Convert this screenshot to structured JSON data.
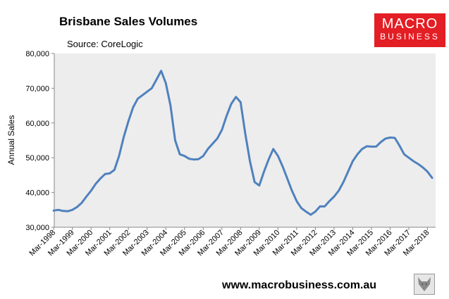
{
  "header": {
    "title": "Brisbane Sales Volumes",
    "source": "Source: CoreLogic"
  },
  "logo": {
    "line1": "MACRO",
    "line2": "BUSINESS",
    "bg_color": "#e31e24"
  },
  "footer": {
    "url": "www.macrobusiness.com.au",
    "mascot_icon": "wolf-icon"
  },
  "chart_data": {
    "type": "line",
    "title": "Brisbane Sales Volumes",
    "ylabel": "Annual Sales",
    "xlabel": "",
    "ylim": [
      30000,
      80000
    ],
    "yticks": [
      30000,
      40000,
      50000,
      60000,
      70000,
      80000
    ],
    "ytick_labels": [
      "30,000",
      "40,000",
      "50,000",
      "60,000",
      "70,000",
      "80,000"
    ],
    "xtick_labels": [
      "Mar-1998",
      "Mar-1999",
      "Mar-2000",
      "Mar-2001",
      "Mar-2002",
      "Mar-2003",
      "Mar-2004",
      "Mar-2005",
      "Mar-2006",
      "Mar-2007",
      "Mar-2008",
      "Mar-2009",
      "Mar-2010",
      "Mar-2011",
      "Mar-2012",
      "Mar-2013",
      "Mar-2014",
      "Mar-2015",
      "Mar-2016",
      "Mar-2017",
      "Mar-2018"
    ],
    "grid": false,
    "line_color": "#4f81bd",
    "plot_background": "#ededed",
    "series": [
      {
        "name": "",
        "x": [
          "1998-03",
          "1998-06",
          "1998-09",
          "1998-12",
          "1999-03",
          "1999-06",
          "1999-09",
          "1999-12",
          "2000-03",
          "2000-06",
          "2000-09",
          "2000-12",
          "2001-03",
          "2001-06",
          "2001-09",
          "2001-12",
          "2002-03",
          "2002-06",
          "2002-09",
          "2002-12",
          "2003-03",
          "2003-06",
          "2003-09",
          "2003-12",
          "2004-03",
          "2004-06",
          "2004-09",
          "2004-12",
          "2005-03",
          "2005-06",
          "2005-09",
          "2005-12",
          "2006-03",
          "2006-06",
          "2006-09",
          "2006-12",
          "2007-03",
          "2007-06",
          "2007-09",
          "2007-12",
          "2008-03",
          "2008-06",
          "2008-09",
          "2008-12",
          "2009-03",
          "2009-06",
          "2009-09",
          "2009-12",
          "2010-03",
          "2010-06",
          "2010-09",
          "2010-12",
          "2011-03",
          "2011-06",
          "2011-09",
          "2011-12",
          "2012-03",
          "2012-06",
          "2012-09",
          "2012-12",
          "2013-03",
          "2013-06",
          "2013-09",
          "2013-12",
          "2014-03",
          "2014-06",
          "2014-09",
          "2014-12",
          "2015-03",
          "2015-06",
          "2015-09",
          "2015-12",
          "2016-03",
          "2016-06",
          "2016-09",
          "2016-12",
          "2017-03",
          "2017-06",
          "2017-09",
          "2017-12",
          "2018-03",
          "2018-06"
        ],
        "values": [
          34800,
          35000,
          34700,
          34600,
          35000,
          35800,
          37000,
          38800,
          40500,
          42500,
          44000,
          45300,
          45500,
          46500,
          50500,
          56000,
          60500,
          64500,
          67000,
          68000,
          69000,
          70000,
          72500,
          75000,
          71500,
          65000,
          55000,
          51000,
          50500,
          49700,
          49500,
          49600,
          50500,
          52500,
          54000,
          55500,
          58000,
          62000,
          65500,
          67500,
          66000,
          57000,
          49000,
          43000,
          42000,
          46000,
          49500,
          52500,
          50500,
          47500,
          44000,
          40500,
          37500,
          35500,
          34500,
          33600,
          34500,
          36000,
          36000,
          37500,
          38800,
          40500,
          43000,
          46000,
          49000,
          51000,
          52500,
          53300,
          53200,
          53200,
          54500,
          55500,
          55800,
          55700,
          53500,
          51000,
          50000,
          49000,
          48200,
          47200,
          46000,
          44200
        ]
      }
    ]
  }
}
